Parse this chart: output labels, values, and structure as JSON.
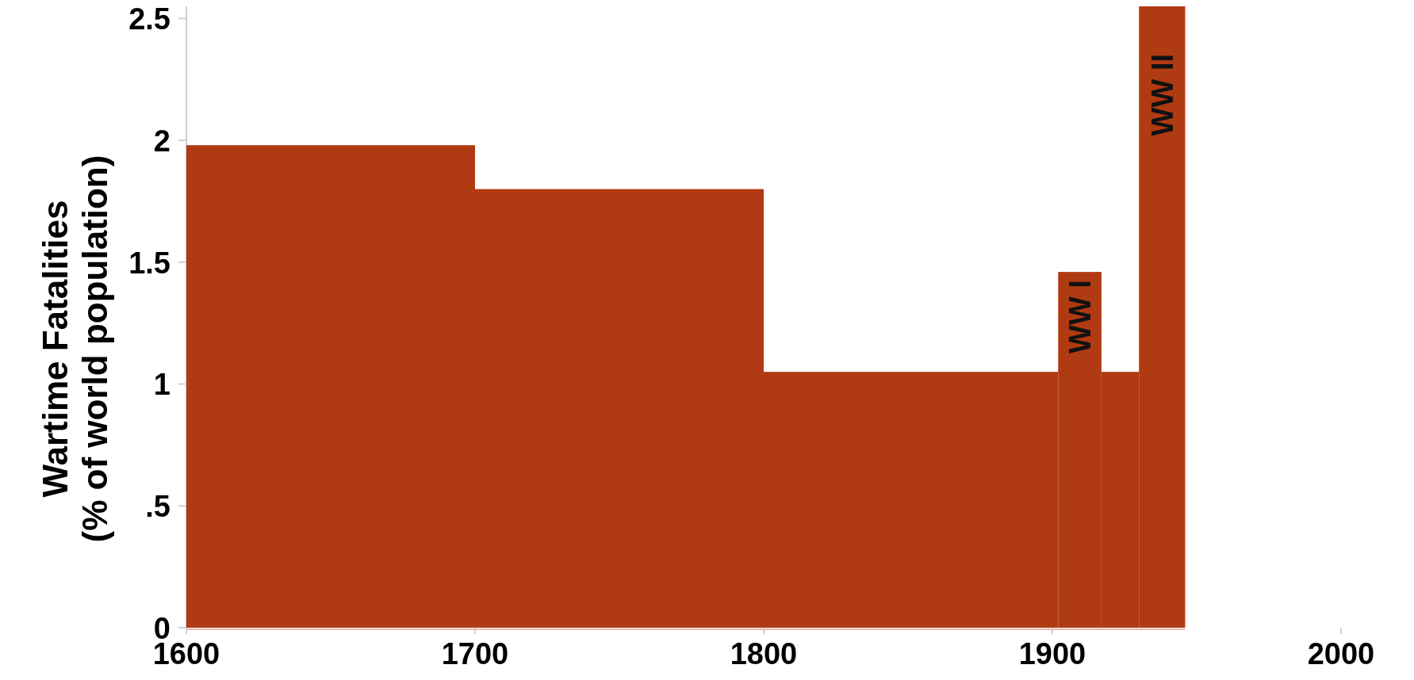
{
  "chart_data": {
    "type": "histogram",
    "ylabel": "Wartime Fatalities\n(% of world population)",
    "bins": [
      1600,
      1700,
      1800,
      1902,
      1917,
      1930,
      1946
    ],
    "values": [
      1.98,
      1.8,
      1.05,
      1.46,
      1.05,
      2.55
    ],
    "color": "#b03a12",
    "xlim": [
      1600,
      2000
    ],
    "xticks": [
      1600,
      1700,
      1800,
      1900,
      2000
    ],
    "ylim": [
      0,
      2.55
    ],
    "yticks": [
      0,
      {
        "value": 0.5,
        "label": ".5"
      },
      1,
      1.5,
      2,
      2.5
    ],
    "annotations": [
      "WW I",
      "WW II"
    ]
  }
}
